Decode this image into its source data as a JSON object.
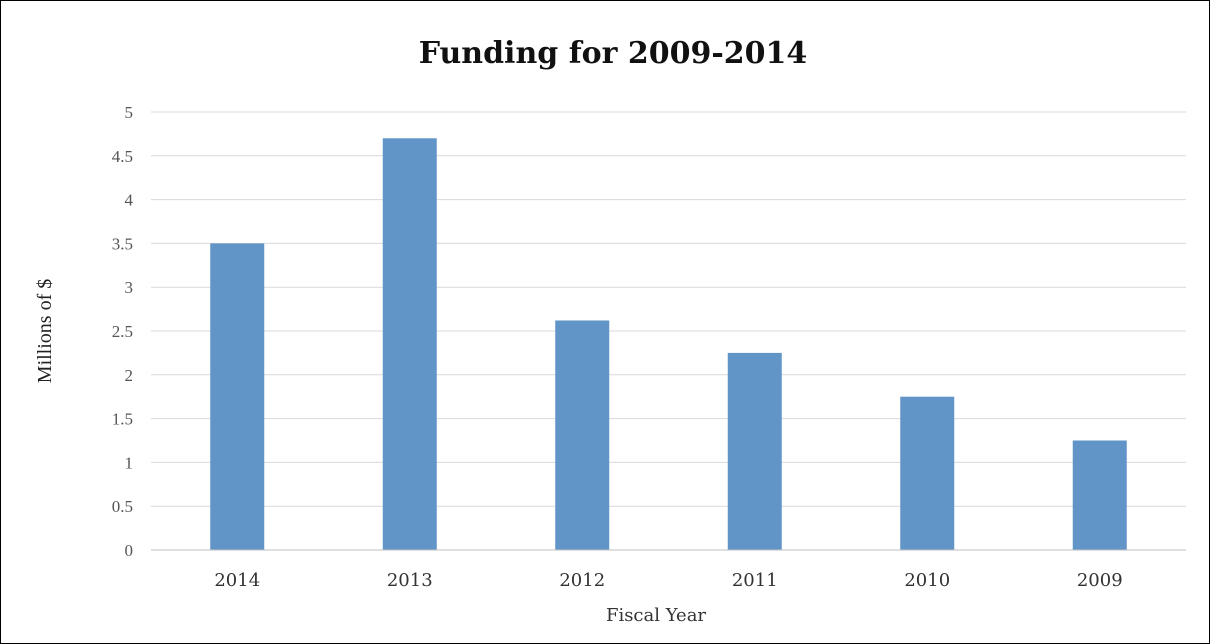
{
  "chart_data": {
    "type": "bar",
    "title": "Funding for 2009-2014",
    "xlabel": "Fiscal Year",
    "ylabel": "Millions of $",
    "categories": [
      "2014",
      "2013",
      "2012",
      "2011",
      "2010",
      "2009"
    ],
    "values": [
      3.5,
      4.7,
      2.62,
      2.25,
      1.75,
      1.25
    ],
    "ylim": [
      0,
      5
    ],
    "yticks": [
      "0",
      "0.5",
      "1",
      "1.5",
      "2",
      "2.5",
      "3",
      "3.5",
      "4",
      "4.5",
      "5"
    ],
    "grid": true,
    "legend": "none",
    "bar_color": "#6194c7"
  }
}
